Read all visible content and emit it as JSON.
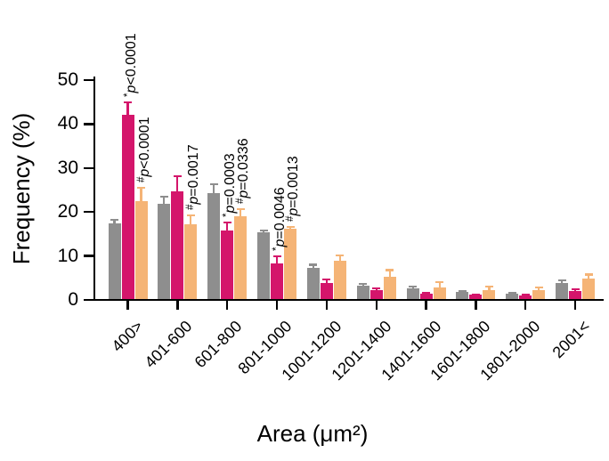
{
  "chart_data": {
    "type": "bar",
    "title": "",
    "xlabel": "Area (μm²)",
    "ylabel": "Frequency (%)",
    "ylim": [
      0,
      50
    ],
    "yticks": [
      0,
      10,
      20,
      30,
      40,
      50
    ],
    "grid": false,
    "legend": "none",
    "axis_color": "#000000",
    "background_color": "#FFFFFF",
    "categories": [
      "400>",
      "401-600",
      "601-800",
      "801-1000",
      "1001-1200",
      "1201-1400",
      "1401-1600",
      "1601-1800",
      "1801-2000",
      "2001<"
    ],
    "series": [
      {
        "name": "gray",
        "color": "#8E8E8E",
        "values": [
          17.2,
          21.7,
          24.1,
          15.2,
          7.0,
          3.1,
          2.4,
          1.6,
          1.3,
          3.7
        ],
        "errors_plus": [
          1.0,
          1.8,
          2.2,
          0.6,
          1.0,
          0.5,
          0.6,
          0.4,
          0.3,
          0.7
        ]
      },
      {
        "name": "magenta",
        "color": "#D4156B",
        "values": [
          42.0,
          24.5,
          15.6,
          8.0,
          3.7,
          2.0,
          1.2,
          1.0,
          0.9,
          1.9
        ],
        "errors_plus": [
          3.0,
          3.6,
          2.0,
          1.9,
          0.9,
          0.7,
          0.4,
          0.3,
          0.4,
          0.5
        ]
      },
      {
        "name": "orange",
        "color": "#F5B476",
        "values": [
          22.3,
          17.0,
          18.8,
          15.9,
          8.7,
          5.1,
          2.6,
          2.0,
          2.0,
          4.6
        ],
        "errors_plus": [
          3.3,
          2.3,
          1.9,
          0.8,
          1.4,
          1.7,
          1.5,
          1.1,
          0.9,
          1.2
        ]
      }
    ],
    "annotations": [
      {
        "group": 0,
        "series": 1,
        "sym": "*",
        "var": "p",
        "rest": "<0.0001"
      },
      {
        "group": 0,
        "series": 2,
        "sym": "#",
        "var": "p",
        "rest": "<0.0001"
      },
      {
        "group": 1,
        "series": 2,
        "sym": "#",
        "var": "p",
        "rest": "=0.0017"
      },
      {
        "group": 2,
        "series": 1,
        "sym": "*",
        "var": "p",
        "rest": "=0.0003"
      },
      {
        "group": 2,
        "series": 2,
        "sym": "#",
        "var": "p",
        "rest": "=0.0336"
      },
      {
        "group": 3,
        "series": 1,
        "sym": "*",
        "var": "p",
        "rest": "=0.0046"
      },
      {
        "group": 3,
        "series": 2,
        "sym": "#",
        "var": "p",
        "rest": "=0.0013"
      }
    ]
  }
}
